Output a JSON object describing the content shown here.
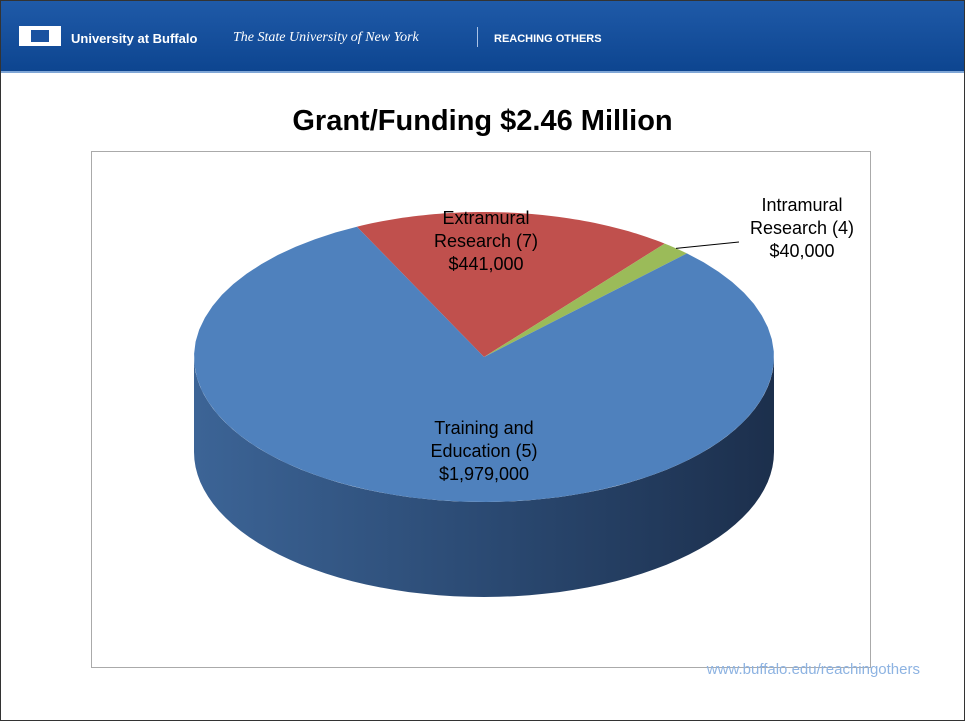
{
  "header": {
    "university": "University at Buffalo",
    "system": "The State University of New York",
    "tagline": "REACHING OTHERS"
  },
  "footer": "www.buffalo.edu/reachingothers",
  "chart_data": {
    "type": "pie",
    "title": "Grant/Funding $2.46 Million",
    "categories": [
      "Extramural Research (7)",
      "Intramural Research (4)",
      "Training and Education (5)"
    ],
    "values": [
      441000,
      40000,
      1979000
    ],
    "value_labels": [
      "$441,000",
      "$40,000",
      "$1,979,000"
    ],
    "colors": [
      "#c0504d",
      "#9bbb59",
      "#4f81bd"
    ]
  }
}
